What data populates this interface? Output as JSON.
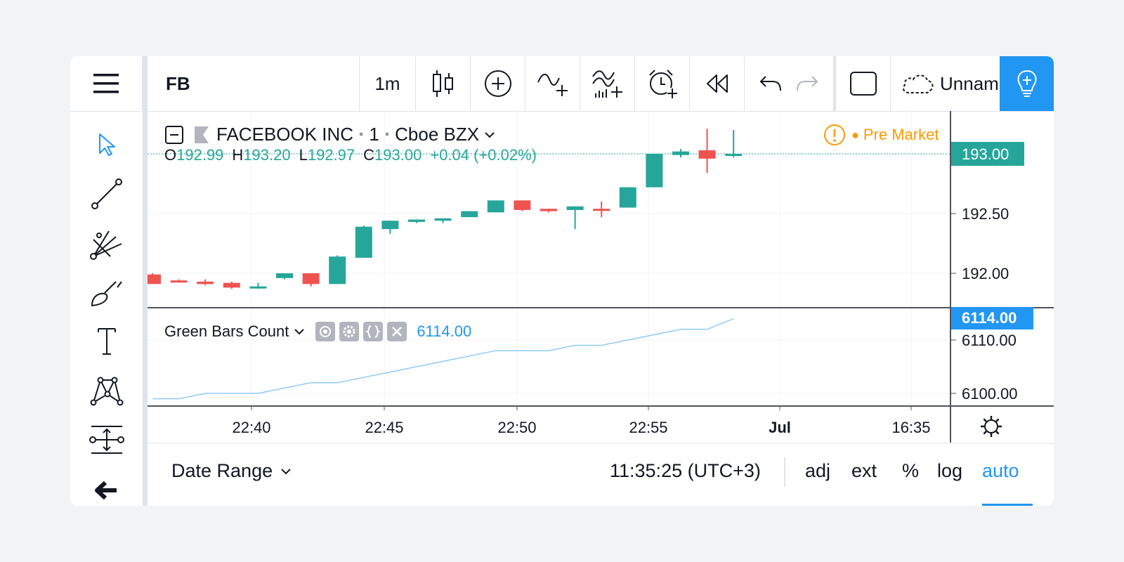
{
  "toolbar": {
    "symbol": "FB",
    "interval": "1m",
    "layout_name": "Unnamed",
    "icons": [
      "menu-icon",
      "candles-icon",
      "compare-add-icon",
      "indicator-add-icon",
      "templates-icon",
      "alert-add-icon",
      "replay-icon",
      "undo-icon",
      "redo-icon",
      "fullscreen-icon",
      "cloud-save-icon",
      "chevron-down-icon",
      "ideas-icon"
    ]
  },
  "legend": {
    "title": "FACEBOOK INC",
    "interval": "1",
    "exchange": "Cboe BZX",
    "o_label": "O",
    "o_value": "192.99",
    "h_label": "H",
    "h_value": "193.20",
    "l_label": "L",
    "l_value": "192.97",
    "c_label": "C",
    "c_value": "193.00",
    "change": "+0.04 (+0.02%)",
    "market_status": "Pre Market"
  },
  "indicator": {
    "name": "Green Bars Count",
    "value": "6114.00"
  },
  "price_axis": {
    "labels": [
      "192.50",
      "192.00"
    ],
    "current_price": "193.00"
  },
  "indicator_axis": {
    "labels": [
      "6110.00",
      "6100.00"
    ],
    "current_value": "6114.00"
  },
  "time_axis": {
    "labels": [
      "22:40",
      "22:45",
      "22:50",
      "22:55",
      "Jul",
      "16:35"
    ]
  },
  "bottom_bar": {
    "date_range": "Date Range",
    "clock": "11:35:25 (UTC+3)",
    "adj": "adj",
    "ext": "ext",
    "percent": "%",
    "log": "log",
    "auto": "auto"
  },
  "colors": {
    "up": "#26a69a",
    "down": "#ef5350",
    "accent": "#2196f3",
    "premarket": "#ff9800",
    "indicator_line": "#90caf9"
  },
  "chart_data": {
    "type": "candlestick",
    "x": [
      "22:37",
      "22:38",
      "22:39",
      "22:40",
      "22:41",
      "22:42",
      "22:43",
      "22:44",
      "22:45",
      "22:46",
      "22:47",
      "22:48",
      "22:49",
      "22:50",
      "22:51",
      "22:52",
      "22:53",
      "22:54",
      "22:55",
      "22:56",
      "22:57",
      "22:58",
      "22:59"
    ],
    "series": [
      {
        "name": "FACEBOOK INC",
        "ohlc": [
          [
            191.99,
            192.0,
            191.92,
            191.91
          ],
          [
            191.94,
            191.95,
            191.93,
            191.93
          ],
          [
            191.93,
            191.95,
            191.9,
            191.91
          ],
          [
            191.92,
            191.93,
            191.87,
            191.88
          ],
          [
            191.89,
            191.92,
            191.87,
            191.89
          ],
          [
            191.96,
            192.0,
            191.95,
            192.0
          ],
          [
            192.0,
            192.0,
            191.89,
            191.91
          ],
          [
            191.91,
            192.15,
            191.91,
            192.14
          ],
          [
            192.13,
            192.4,
            192.13,
            192.39
          ],
          [
            192.37,
            192.44,
            192.33,
            192.44
          ],
          [
            192.43,
            192.45,
            192.42,
            192.45
          ],
          [
            192.44,
            192.46,
            192.42,
            192.46
          ],
          [
            192.47,
            192.52,
            192.47,
            192.52
          ],
          [
            192.51,
            192.61,
            192.51,
            192.61
          ],
          [
            192.61,
            192.61,
            192.52,
            192.53
          ],
          [
            192.54,
            192.54,
            192.51,
            192.52
          ],
          [
            192.53,
            192.56,
            192.37,
            192.56
          ],
          [
            192.54,
            192.6,
            192.47,
            192.53
          ],
          [
            192.55,
            192.72,
            192.55,
            192.72
          ],
          [
            192.72,
            193.0,
            192.72,
            193.0
          ],
          [
            192.99,
            193.04,
            192.97,
            193.02
          ],
          [
            193.03,
            193.21,
            192.84,
            192.96
          ],
          [
            192.99,
            193.2,
            192.97,
            193.0
          ]
        ]
      },
      {
        "name": "Green Bars Count",
        "values": [
          6099,
          6099,
          6100,
          6100,
          6100,
          6101,
          6102,
          6102,
          6103,
          6104,
          6105,
          6106,
          6107,
          6108,
          6108,
          6108,
          6109,
          6109,
          6110,
          6111,
          6112,
          6112,
          6114
        ]
      }
    ],
    "price_ylim": [
      191.8,
      193.2
    ],
    "indicator_ylim": [
      6098,
      6115
    ]
  }
}
